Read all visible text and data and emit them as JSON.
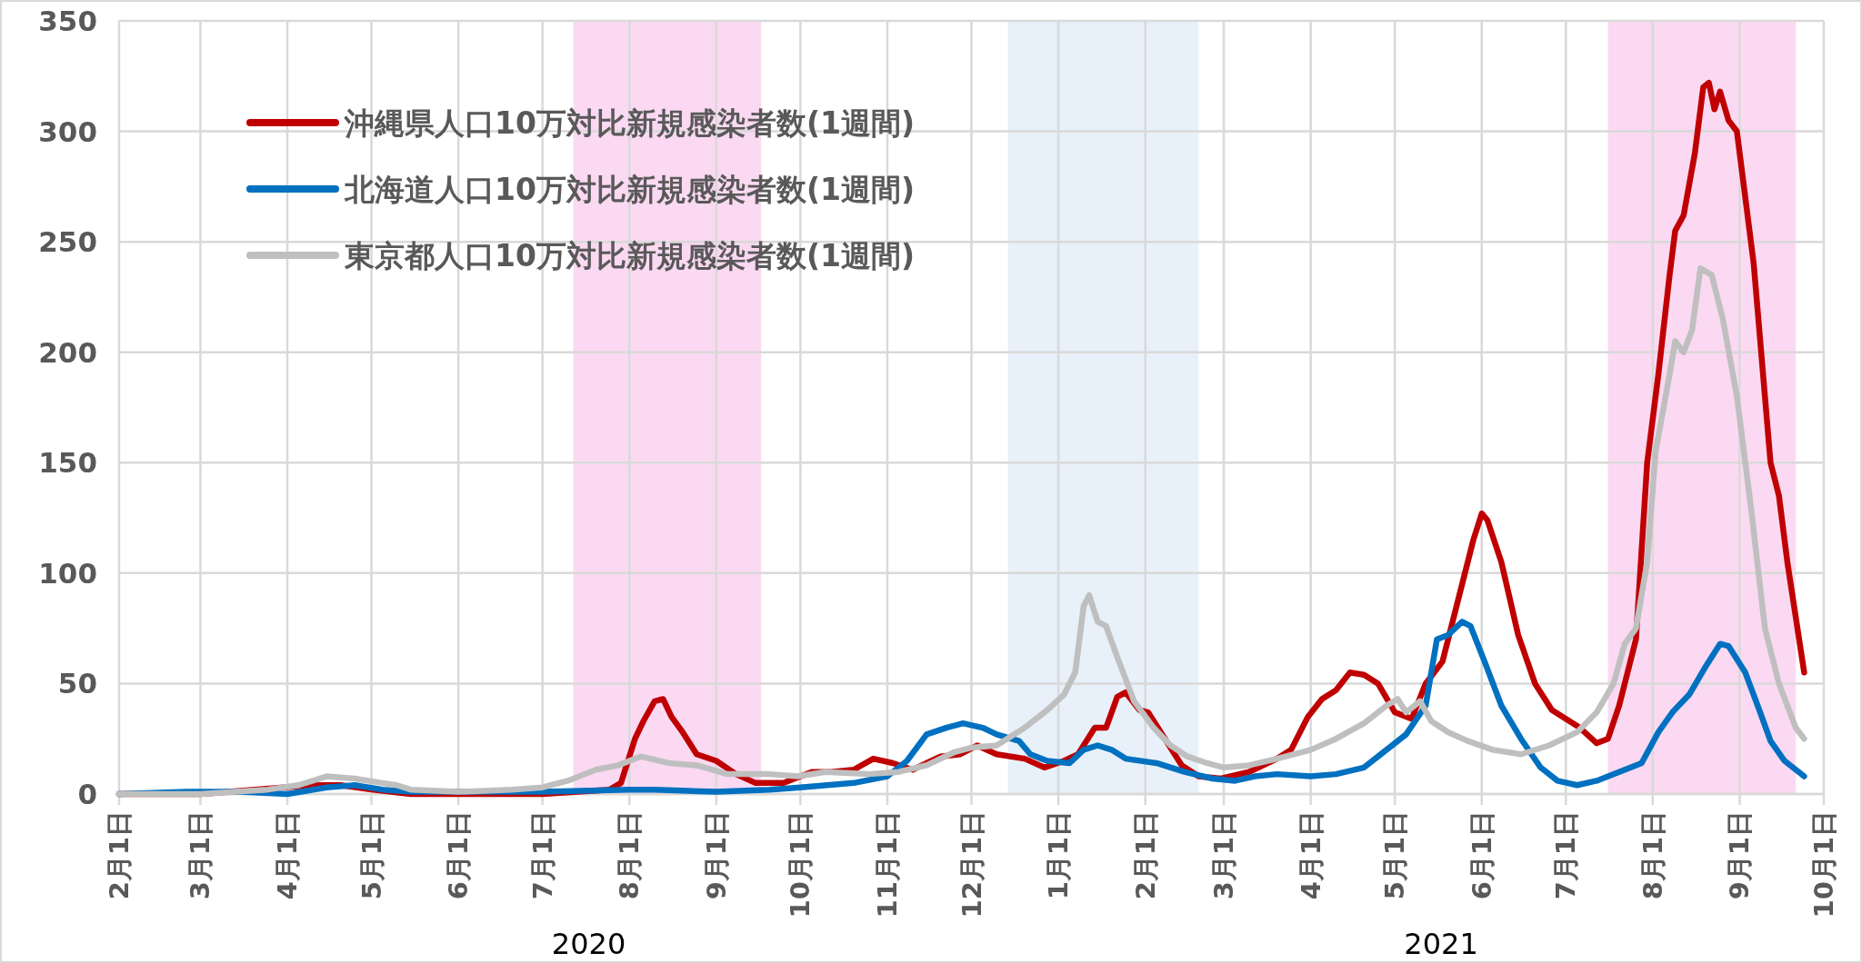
{
  "chart_data": {
    "type": "line",
    "xlim": [
      "2020-02-01",
      "2021-10-01"
    ],
    "ylim": [
      0,
      350
    ],
    "yticks": [
      0,
      50,
      100,
      150,
      200,
      250,
      300,
      350
    ],
    "xticks": [
      {
        "value": "2020-02-01",
        "label": "2月1日"
      },
      {
        "value": "2020-03-01",
        "label": "3月1日"
      },
      {
        "value": "2020-04-01",
        "label": "4月1日"
      },
      {
        "value": "2020-05-01",
        "label": "5月1日"
      },
      {
        "value": "2020-06-01",
        "label": "6月1日"
      },
      {
        "value": "2020-07-01",
        "label": "7月1日"
      },
      {
        "value": "2020-08-01",
        "label": "8月1日"
      },
      {
        "value": "2020-09-01",
        "label": "9月1日"
      },
      {
        "value": "2020-10-01",
        "label": "10月1日"
      },
      {
        "value": "2020-11-01",
        "label": "11月1日"
      },
      {
        "value": "2020-12-01",
        "label": "12月1日"
      },
      {
        "value": "2021-01-01",
        "label": "1月1日"
      },
      {
        "value": "2021-02-01",
        "label": "2月1日"
      },
      {
        "value": "2021-03-01",
        "label": "3月1日"
      },
      {
        "value": "2021-04-01",
        "label": "4月1日"
      },
      {
        "value": "2021-05-01",
        "label": "5月1日"
      },
      {
        "value": "2021-06-01",
        "label": "6月1日"
      },
      {
        "value": "2021-07-01",
        "label": "7月1日"
      },
      {
        "value": "2021-08-01",
        "label": "8月1日"
      },
      {
        "value": "2021-09-01",
        "label": "9月1日"
      },
      {
        "value": "2021-10-01",
        "label": "10月1日"
      }
    ],
    "grid": true,
    "legend": "top left",
    "bands": [
      {
        "axis": "x",
        "from": "2020-07-12",
        "to": "2020-09-17",
        "color": "#fbd9f2"
      },
      {
        "axis": "x",
        "from": "2020-12-14",
        "to": "2021-02-20",
        "color": "#e8f0f9"
      },
      {
        "axis": "x",
        "from": "2021-07-16",
        "to": "2021-09-21",
        "color": "#fbd9f2"
      }
    ],
    "annotations": [
      "2020",
      "2021"
    ],
    "series": [
      {
        "name": "沖縄県人口10万対比新規感染者数(1週間)",
        "color": "#c00000",
        "x": [
          "2020-02-01",
          "2020-03-01",
          "2020-04-10",
          "2020-04-20",
          "2020-05-01",
          "2020-05-15",
          "2020-06-01",
          "2020-07-01",
          "2020-07-25",
          "2020-07-29",
          "2020-08-03",
          "2020-08-06",
          "2020-08-10",
          "2020-08-13",
          "2020-08-16",
          "2020-08-20",
          "2020-08-25",
          "2020-09-01",
          "2020-09-08",
          "2020-09-15",
          "2020-09-25",
          "2020-10-05",
          "2020-10-12",
          "2020-10-20",
          "2020-10-27",
          "2020-11-03",
          "2020-11-10",
          "2020-11-20",
          "2020-11-27",
          "2020-12-03",
          "2020-12-10",
          "2020-12-20",
          "2020-12-27",
          "2021-01-03",
          "2021-01-08",
          "2021-01-14",
          "2021-01-18",
          "2021-01-22",
          "2021-01-25",
          "2021-01-30",
          "2021-02-02",
          "2021-02-08",
          "2021-02-14",
          "2021-02-20",
          "2021-02-28",
          "2021-03-10",
          "2021-03-20",
          "2021-03-25",
          "2021-03-31",
          "2021-04-05",
          "2021-04-10",
          "2021-04-15",
          "2021-04-20",
          "2021-04-25",
          "2021-05-01",
          "2021-05-07",
          "2021-05-12",
          "2021-05-18",
          "2021-05-24",
          "2021-05-29",
          "2021-06-01",
          "2021-06-03",
          "2021-06-08",
          "2021-06-14",
          "2021-06-20",
          "2021-06-26",
          "2021-07-01",
          "2021-07-06",
          "2021-07-12",
          "2021-07-16",
          "2021-07-20",
          "2021-07-26",
          "2021-07-30",
          "2021-08-03",
          "2021-08-07",
          "2021-08-09",
          "2021-08-12",
          "2021-08-16",
          "2021-08-19",
          "2021-08-21",
          "2021-08-23",
          "2021-08-25",
          "2021-08-28",
          "2021-08-31",
          "2021-09-03",
          "2021-09-06",
          "2021-09-09",
          "2021-09-12",
          "2021-09-15",
          "2021-09-18",
          "2021-09-21",
          "2021-09-24"
        ],
        "values": [
          0,
          0,
          4,
          4,
          2,
          0,
          0,
          0,
          2,
          5,
          25,
          33,
          42,
          43,
          35,
          28,
          18,
          15,
          9,
          5,
          5,
          10,
          10,
          11,
          16,
          14,
          11,
          17,
          18,
          22,
          18,
          16,
          12,
          15,
          18,
          30,
          30,
          44,
          46,
          38,
          37,
          25,
          13,
          8,
          7,
          10,
          16,
          20,
          35,
          43,
          47,
          55,
          54,
          50,
          37,
          34,
          50,
          60,
          90,
          115,
          127,
          124,
          105,
          72,
          50,
          38,
          34,
          30,
          23,
          25,
          40,
          70,
          150,
          190,
          235,
          255,
          262,
          290,
          320,
          322,
          310,
          318,
          305,
          300,
          270,
          240,
          195,
          150,
          135,
          105,
          80,
          55
        ]
      },
      {
        "name": "北海道人口10万対比新規感染者数(1週間)",
        "color": "#0070c0",
        "x": [
          "2020-02-01",
          "2020-02-25",
          "2020-03-15",
          "2020-04-01",
          "2020-04-15",
          "2020-04-25",
          "2020-05-05",
          "2020-05-15",
          "2020-06-01",
          "2020-07-01",
          "2020-08-01",
          "2020-08-10",
          "2020-09-01",
          "2020-09-20",
          "2020-10-01",
          "2020-10-20",
          "2020-11-01",
          "2020-11-08",
          "2020-11-15",
          "2020-11-22",
          "2020-11-28",
          "2020-12-05",
          "2020-12-10",
          "2020-12-18",
          "2020-12-22",
          "2020-12-28",
          "2021-01-05",
          "2021-01-10",
          "2021-01-15",
          "2021-01-20",
          "2021-01-25",
          "2021-02-05",
          "2021-02-15",
          "2021-02-25",
          "2021-03-05",
          "2021-03-12",
          "2021-03-20",
          "2021-04-01",
          "2021-04-10",
          "2021-04-20",
          "2021-04-28",
          "2021-05-05",
          "2021-05-12",
          "2021-05-16",
          "2021-05-20",
          "2021-05-25",
          "2021-05-28",
          "2021-06-02",
          "2021-06-08",
          "2021-06-15",
          "2021-06-22",
          "2021-06-28",
          "2021-07-05",
          "2021-07-12",
          "2021-07-20",
          "2021-07-28",
          "2021-08-03",
          "2021-08-08",
          "2021-08-14",
          "2021-08-20",
          "2021-08-25",
          "2021-08-28",
          "2021-09-03",
          "2021-09-08",
          "2021-09-12",
          "2021-09-17",
          "2021-09-24"
        ],
        "values": [
          0,
          1,
          1,
          0,
          3,
          4,
          2,
          1,
          1,
          1,
          2,
          2,
          1,
          2,
          3,
          5,
          8,
          15,
          27,
          30,
          32,
          30,
          27,
          24,
          18,
          15,
          14,
          20,
          22,
          20,
          16,
          14,
          10,
          7,
          6,
          8,
          9,
          8,
          9,
          12,
          20,
          27,
          40,
          70,
          72,
          78,
          76,
          60,
          40,
          25,
          12,
          6,
          4,
          6,
          10,
          14,
          28,
          37,
          45,
          58,
          68,
          67,
          55,
          38,
          24,
          15,
          8
        ]
      },
      {
        "name": "東京都人口10万対比新規感染者数(1週間)",
        "color": "#bfbfbf",
        "x": [
          "2020-02-01",
          "2020-03-01",
          "2020-03-25",
          "2020-04-05",
          "2020-04-15",
          "2020-04-25",
          "2020-05-05",
          "2020-05-10",
          "2020-05-15",
          "2020-06-01",
          "2020-06-20",
          "2020-07-01",
          "2020-07-10",
          "2020-07-20",
          "2020-07-28",
          "2020-08-05",
          "2020-08-15",
          "2020-08-25",
          "2020-09-05",
          "2020-09-20",
          "2020-09-30",
          "2020-10-10",
          "2020-10-25",
          "2020-11-05",
          "2020-11-15",
          "2020-11-25",
          "2020-12-01",
          "2020-12-10",
          "2020-12-20",
          "2020-12-28",
          "2021-01-03",
          "2021-01-07",
          "2021-01-10",
          "2021-01-12",
          "2021-01-15",
          "2021-01-18",
          "2021-01-22",
          "2021-01-28",
          "2021-02-04",
          "2021-02-10",
          "2021-02-16",
          "2021-02-23",
          "2021-03-01",
          "2021-03-10",
          "2021-03-20",
          "2021-04-01",
          "2021-04-10",
          "2021-04-20",
          "2021-04-28",
          "2021-05-02",
          "2021-05-05",
          "2021-05-10",
          "2021-05-14",
          "2021-05-20",
          "2021-05-27",
          "2021-06-05",
          "2021-06-15",
          "2021-06-25",
          "2021-07-05",
          "2021-07-12",
          "2021-07-18",
          "2021-07-22",
          "2021-07-26",
          "2021-07-30",
          "2021-08-02",
          "2021-08-07",
          "2021-08-09",
          "2021-08-12",
          "2021-08-15",
          "2021-08-18",
          "2021-08-22",
          "2021-08-26",
          "2021-08-31",
          "2021-09-05",
          "2021-09-10",
          "2021-09-15",
          "2021-09-21",
          "2021-09-24"
        ],
        "values": [
          0,
          0,
          2,
          4,
          8,
          7,
          5,
          4,
          2,
          1,
          2,
          3,
          6,
          11,
          13,
          17,
          14,
          13,
          9,
          9,
          8,
          10,
          9,
          10,
          13,
          19,
          21,
          22,
          30,
          38,
          45,
          55,
          85,
          90,
          78,
          76,
          62,
          42,
          30,
          22,
          17,
          14,
          12,
          13,
          16,
          20,
          25,
          32,
          40,
          43,
          37,
          42,
          33,
          28,
          24,
          20,
          18,
          22,
          28,
          37,
          50,
          68,
          75,
          105,
          155,
          190,
          205,
          200,
          210,
          238,
          235,
          215,
          180,
          130,
          75,
          50,
          30,
          25
        ]
      }
    ]
  }
}
